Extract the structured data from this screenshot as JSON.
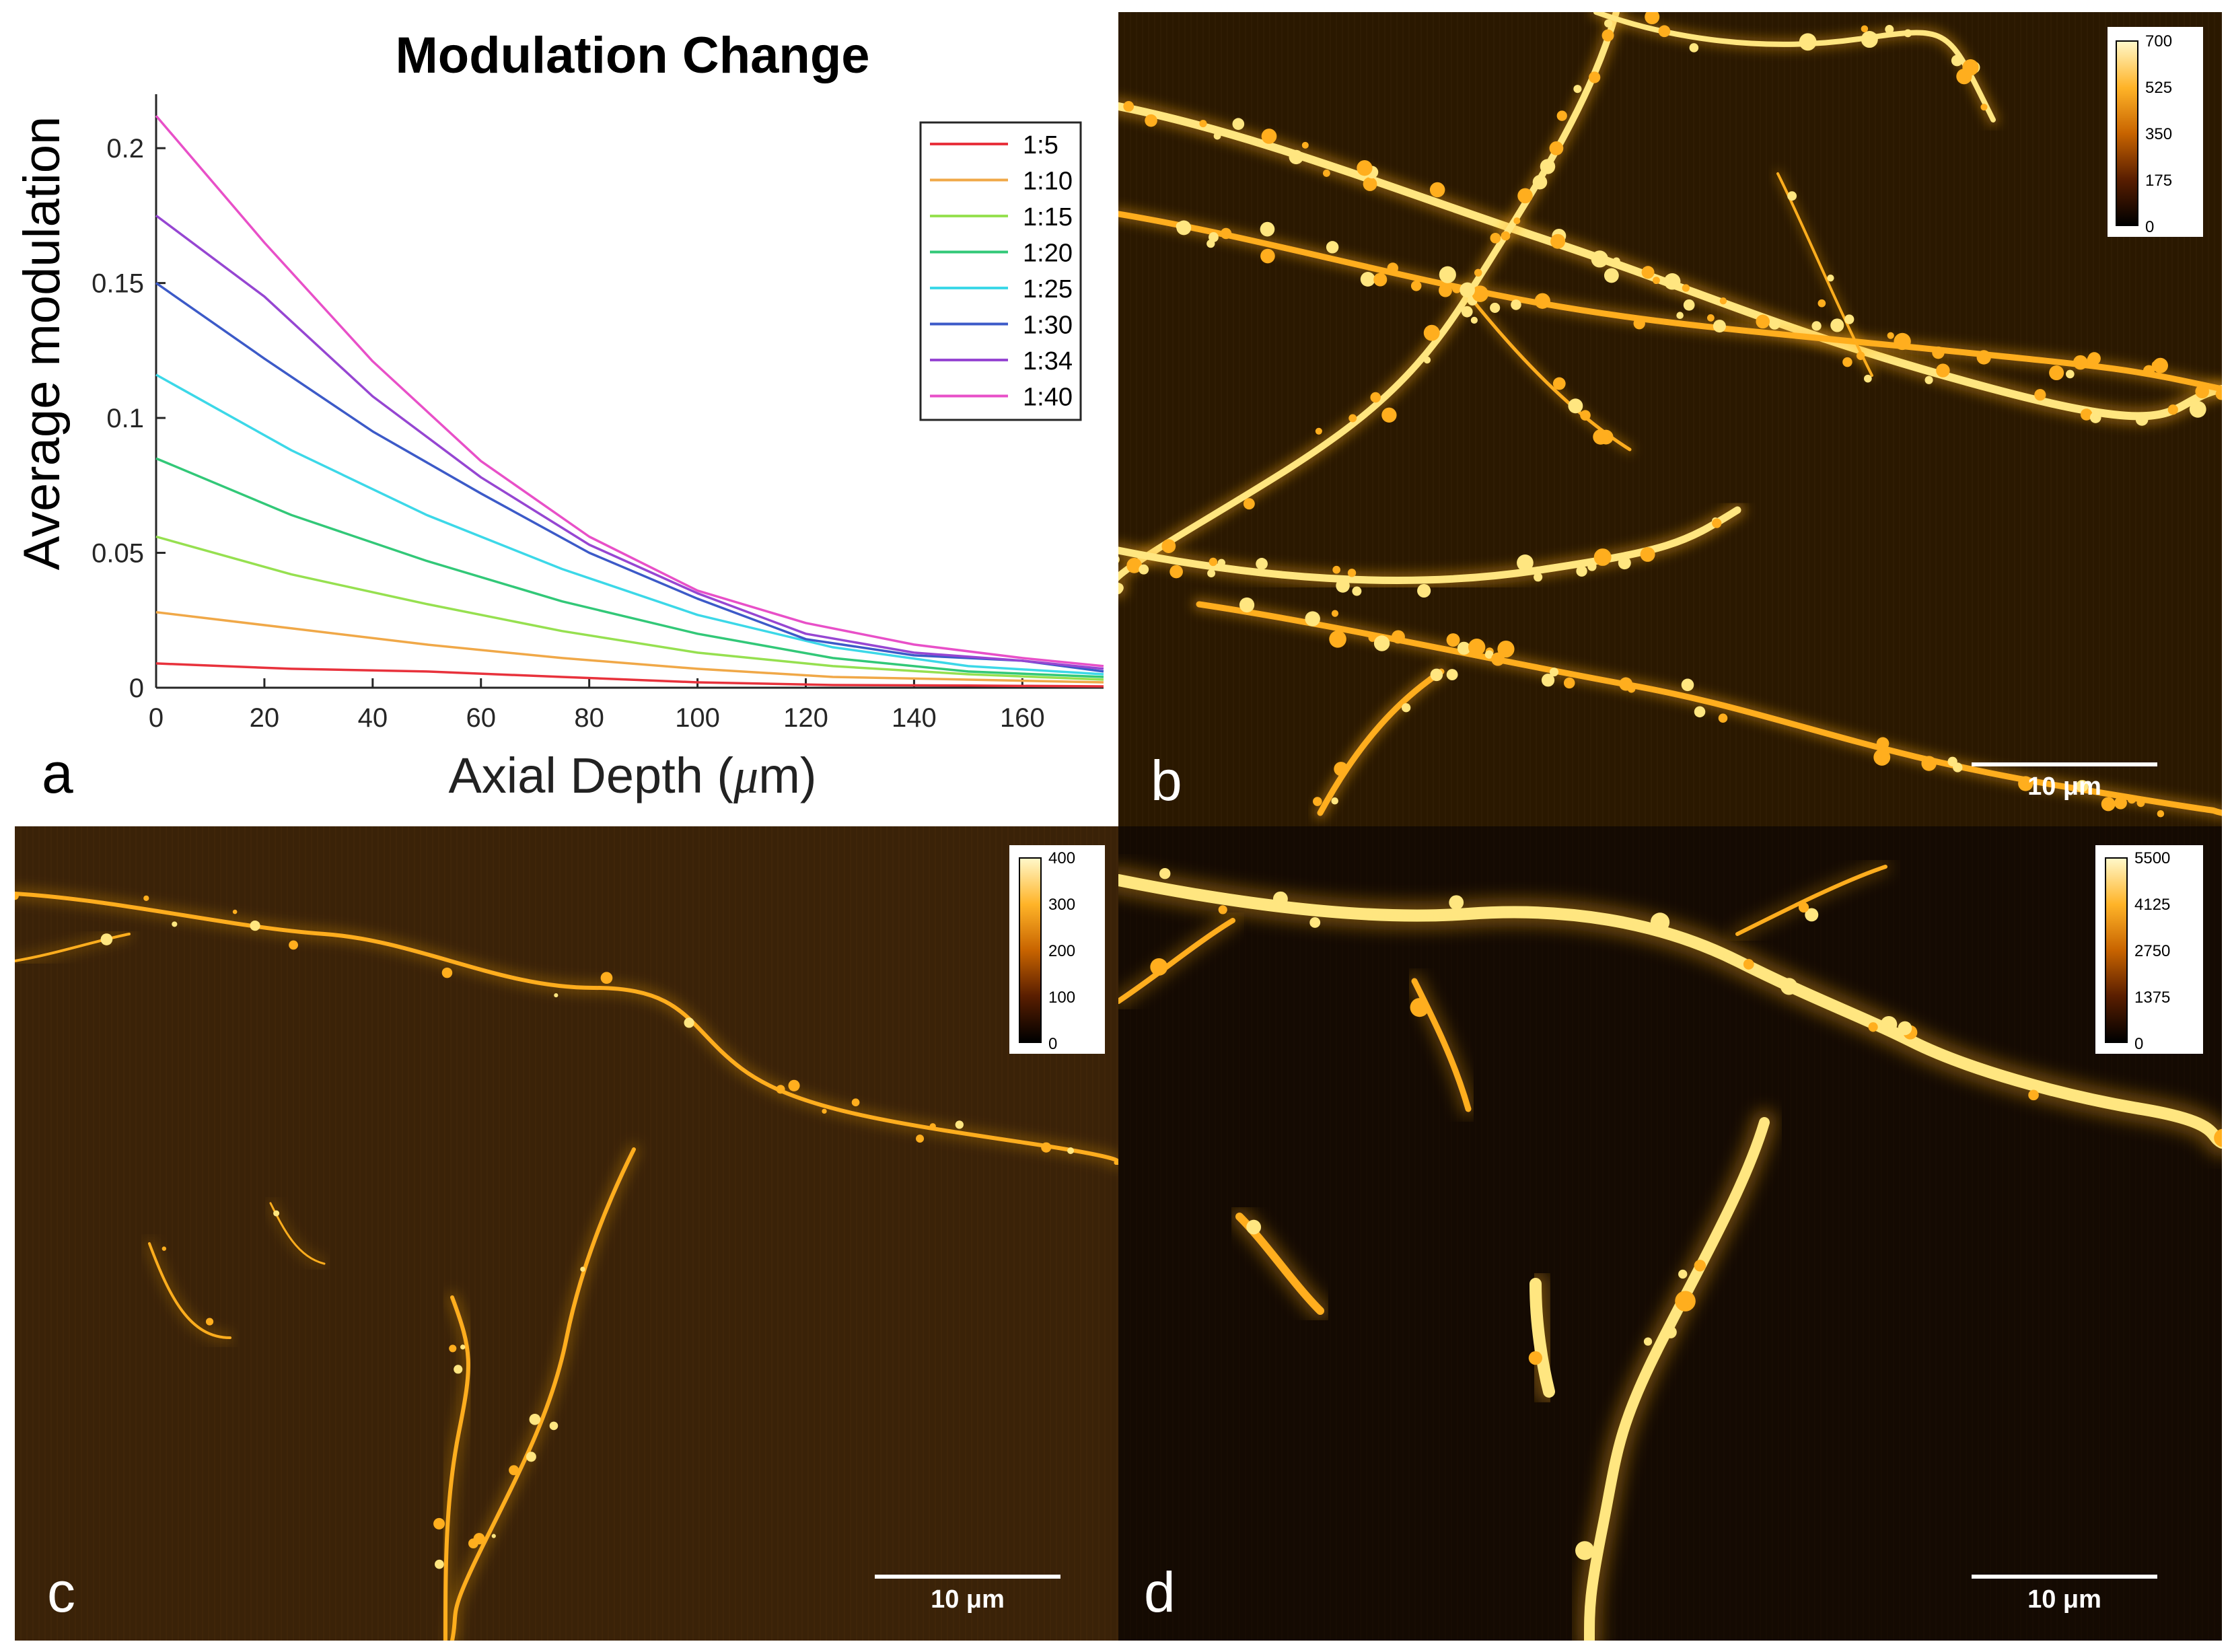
{
  "chart_data": {
    "type": "line",
    "title": "Modulation Change",
    "xlabel_text": "Axial Depth (",
    "xlabel_unit_mu": "μ",
    "xlabel_unit_rest": "m)",
    "ylabel": "Average modulation",
    "xlim": [
      0,
      175
    ],
    "ylim": [
      0,
      0.22
    ],
    "x_ticks": [
      "0",
      "20",
      "40",
      "60",
      "80",
      "100",
      "120",
      "140",
      "160"
    ],
    "y_ticks": [
      "0",
      "0.05",
      "0.1",
      "0.15",
      "0.2"
    ],
    "grid": false,
    "legend_position": "top-right",
    "series": [
      {
        "name": "1:5",
        "color": "#e8323c",
        "x": [
          0,
          25,
          50,
          75,
          100,
          125,
          150,
          175
        ],
        "y": [
          0.009,
          0.007,
          0.006,
          0.004,
          0.002,
          0.001,
          0.0008,
          0.0005
        ]
      },
      {
        "name": "1:10",
        "color": "#f0a848",
        "x": [
          0,
          25,
          50,
          75,
          100,
          125,
          150,
          175
        ],
        "y": [
          0.028,
          0.022,
          0.016,
          0.011,
          0.007,
          0.004,
          0.003,
          0.002
        ]
      },
      {
        "name": "1:15",
        "color": "#96e050",
        "x": [
          0,
          25,
          50,
          75,
          100,
          125,
          150,
          175
        ],
        "y": [
          0.056,
          0.042,
          0.031,
          0.021,
          0.013,
          0.008,
          0.005,
          0.003
        ]
      },
      {
        "name": "1:20",
        "color": "#32c878",
        "x": [
          0,
          25,
          50,
          75,
          100,
          125,
          150,
          175
        ],
        "y": [
          0.085,
          0.064,
          0.047,
          0.032,
          0.02,
          0.011,
          0.006,
          0.004
        ]
      },
      {
        "name": "1:25",
        "color": "#3cd8e8",
        "x": [
          0,
          25,
          50,
          75,
          100,
          125,
          150,
          175
        ],
        "y": [
          0.116,
          0.088,
          0.064,
          0.044,
          0.027,
          0.015,
          0.008,
          0.005
        ]
      },
      {
        "name": "1:30",
        "color": "#3c5ac8",
        "x": [
          0,
          20,
          40,
          60,
          80,
          100,
          120,
          140,
          160,
          175
        ],
        "y": [
          0.15,
          0.122,
          0.095,
          0.072,
          0.05,
          0.033,
          0.018,
          0.012,
          0.01,
          0.006
        ]
      },
      {
        "name": "1:34",
        "color": "#9646d2",
        "x": [
          0,
          20,
          40,
          60,
          80,
          100,
          120,
          140,
          160,
          175
        ],
        "y": [
          0.175,
          0.145,
          0.108,
          0.078,
          0.053,
          0.035,
          0.02,
          0.013,
          0.01,
          0.007
        ]
      },
      {
        "name": "1:40",
        "color": "#e850c8",
        "x": [
          0,
          20,
          40,
          60,
          80,
          100,
          120,
          140,
          160,
          175
        ],
        "y": [
          0.212,
          0.165,
          0.121,
          0.084,
          0.056,
          0.036,
          0.024,
          0.016,
          0.011,
          0.008
        ]
      }
    ]
  },
  "panels": {
    "a": {
      "letter": "a"
    },
    "b": {
      "letter": "b",
      "scalebar_label": "10 μm",
      "colorbar_ticks": [
        "700",
        "525",
        "350",
        "175",
        "0"
      ]
    },
    "c": {
      "letter": "c",
      "scalebar_label": "10 μm",
      "colorbar_ticks": [
        "400",
        "300",
        "200",
        "100",
        "0"
      ]
    },
    "d": {
      "letter": "d",
      "scalebar_label": "10 μm",
      "colorbar_ticks": [
        "5500",
        "4125",
        "2750",
        "1375",
        "0"
      ]
    }
  },
  "colors": {
    "image_background_b": "#2a1800",
    "image_background_c": "#3a2208",
    "image_background_d": "#140a02",
    "fluorescence": "#ffae1e",
    "fluorescence_bright": "#ffe680"
  }
}
